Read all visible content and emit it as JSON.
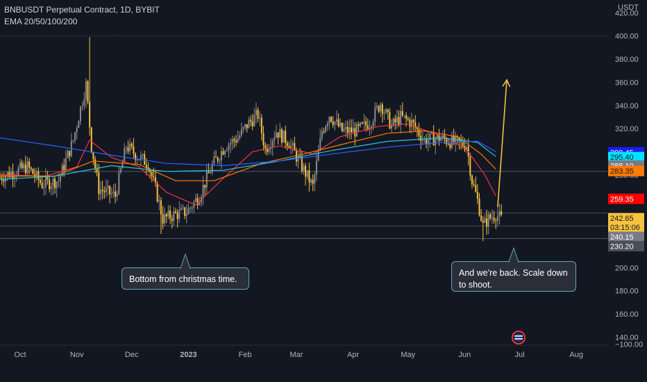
{
  "header": {
    "title": "BNBUSDT Perpetual Contract, 1D, BYBIT",
    "indicator": "EMA 20/50/100/200"
  },
  "axis": {
    "currency": "USDT"
  },
  "annotations": [
    {
      "text": "Bottom from christmas time."
    },
    {
      "text": "And we're back. Scale down to shoot."
    }
  ],
  "price_badges": [
    {
      "value": "299.45",
      "price": 299.45,
      "bg": "#1a1aff",
      "fg": "#ffffff"
    },
    {
      "value": "295.40",
      "price": 295.4,
      "bg": "#00e5ff",
      "fg": "#131722"
    },
    {
      "value": "288.10",
      "price": 288.1,
      "bg": "#787b86",
      "fg": "#ffffff"
    },
    {
      "value": "283.35",
      "price": 283.35,
      "bg": "#ff7a00",
      "fg": "#131722"
    },
    {
      "value": "259.35",
      "price": 259.35,
      "bg": "#ff0000",
      "fg": "#ffffff"
    },
    {
      "value": "242.65",
      "price": 242.65,
      "bg": "#f7c23e",
      "fg": "#131722"
    },
    {
      "value": "03:15:06",
      "price": 234.8,
      "bg": "#f7c23e",
      "fg": "#131722"
    },
    {
      "value": "240.15",
      "price": 226.5,
      "bg": "#787b86",
      "fg": "#ffffff"
    },
    {
      "value": "230.20",
      "price": 218.5,
      "bg": "#4a4e59",
      "fg": "#ffffff"
    }
  ],
  "colors": {
    "background": "#131722",
    "candle_up": "#8c8c8c",
    "candle_down": "#f7c23e",
    "ema20": "#f23645",
    "ema50": "#ff7a00",
    "ema100": "#26c6da",
    "ema200": "#2962ff",
    "arrow": "#f7c23e"
  },
  "chart_data": {
    "type": "candlestick",
    "title": "BNBUSDT Perpetual Contract, 1D, BYBIT",
    "indicator": "EMA 20/50/100/200",
    "y_unit": "USDT",
    "ylim": [
      133,
      431
    ],
    "y_ticks": [
      "420.00",
      "400.00",
      "380.00",
      "360.00",
      "340.00",
      "320.00",
      "300.00",
      "280.00",
      "260.00",
      "240.00",
      "220.00",
      "200.00",
      "180.00",
      "160.00",
      "140.00"
    ],
    "x_ticks": [
      {
        "label": "Oct",
        "date": "2022-10-01"
      },
      {
        "label": "Nov",
        "date": "2022-11-01"
      },
      {
        "label": "Dec",
        "date": "2022-12-01"
      },
      {
        "label": "2023",
        "date": "2023-01-01"
      },
      {
        "label": "Feb",
        "date": "2023-02-01"
      },
      {
        "label": "Mar",
        "date": "2023-03-01"
      },
      {
        "label": "Apr",
        "date": "2023-04-01"
      },
      {
        "label": "May",
        "date": "2023-05-01"
      },
      {
        "label": "Jun",
        "date": "2023-06-01"
      },
      {
        "label": "Jul",
        "date": "2023-07-01"
      },
      {
        "label": "Aug",
        "date": "2023-08-01"
      }
    ],
    "x_range": [
      "2022-09-20",
      "2023-08-18"
    ],
    "horizontal_levels": [
      400,
      283,
      247,
      236,
      225
    ],
    "price_path": [
      {
        "date": "2022-09-20",
        "price": 278
      },
      {
        "date": "2022-09-28",
        "price": 283
      },
      {
        "date": "2022-10-05",
        "price": 287
      },
      {
        "date": "2022-10-13",
        "price": 272
      },
      {
        "date": "2022-10-22",
        "price": 275
      },
      {
        "date": "2022-10-30",
        "price": 310
      },
      {
        "date": "2022-11-06",
        "price": 358
      },
      {
        "date": "2022-11-09",
        "price": 305
      },
      {
        "date": "2022-11-13",
        "price": 268
      },
      {
        "date": "2022-11-22",
        "price": 262
      },
      {
        "date": "2022-11-28",
        "price": 305
      },
      {
        "date": "2022-12-05",
        "price": 295
      },
      {
        "date": "2022-12-10",
        "price": 290
      },
      {
        "date": "2022-12-15",
        "price": 262
      },
      {
        "date": "2022-12-18",
        "price": 242
      },
      {
        "date": "2022-12-25",
        "price": 246
      },
      {
        "date": "2022-12-31",
        "price": 248
      },
      {
        "date": "2023-01-07",
        "price": 262
      },
      {
        "date": "2023-01-14",
        "price": 288
      },
      {
        "date": "2023-01-21",
        "price": 305
      },
      {
        "date": "2023-01-28",
        "price": 312
      },
      {
        "date": "2023-02-03",
        "price": 325
      },
      {
        "date": "2023-02-08",
        "price": 332
      },
      {
        "date": "2023-02-12",
        "price": 302
      },
      {
        "date": "2023-02-18",
        "price": 318
      },
      {
        "date": "2023-02-25",
        "price": 308
      },
      {
        "date": "2023-03-03",
        "price": 290
      },
      {
        "date": "2023-03-10",
        "price": 270
      },
      {
        "date": "2023-03-15",
        "price": 318
      },
      {
        "date": "2023-03-19",
        "price": 332
      },
      {
        "date": "2023-03-26",
        "price": 318
      },
      {
        "date": "2023-04-03",
        "price": 318
      },
      {
        "date": "2023-04-10",
        "price": 325
      },
      {
        "date": "2023-04-16",
        "price": 342
      },
      {
        "date": "2023-04-22",
        "price": 322
      },
      {
        "date": "2023-04-27",
        "price": 330
      },
      {
        "date": "2023-05-03",
        "price": 325
      },
      {
        "date": "2023-05-10",
        "price": 310
      },
      {
        "date": "2023-05-18",
        "price": 312
      },
      {
        "date": "2023-05-26",
        "price": 308
      },
      {
        "date": "2023-06-02",
        "price": 306
      },
      {
        "date": "2023-06-05",
        "price": 275
      },
      {
        "date": "2023-06-08",
        "price": 258
      },
      {
        "date": "2023-06-11",
        "price": 236
      },
      {
        "date": "2023-06-14",
        "price": 242
      },
      {
        "date": "2023-06-18",
        "price": 246
      },
      {
        "date": "2023-06-21",
        "price": 242
      }
    ],
    "series": [
      {
        "name": "EMA 20",
        "color": "#f23645",
        "points": [
          [
            "2022-09-20",
            280
          ],
          [
            "2022-10-15",
            279
          ],
          [
            "2022-11-01",
            287
          ],
          [
            "2022-11-08",
            310
          ],
          [
            "2022-11-20",
            295
          ],
          [
            "2022-12-05",
            287
          ],
          [
            "2022-12-20",
            265
          ],
          [
            "2023-01-05",
            254
          ],
          [
            "2023-01-20",
            277
          ],
          [
            "2023-02-05",
            300
          ],
          [
            "2023-02-20",
            305
          ],
          [
            "2023-03-10",
            298
          ],
          [
            "2023-03-25",
            313
          ],
          [
            "2023-04-15",
            322
          ],
          [
            "2023-05-01",
            324
          ],
          [
            "2023-05-20",
            313
          ],
          [
            "2023-06-02",
            302
          ],
          [
            "2023-06-12",
            280
          ],
          [
            "2023-06-18",
            262
          ]
        ]
      },
      {
        "name": "EMA 50",
        "color": "#ff7a00",
        "points": [
          [
            "2022-09-20",
            279
          ],
          [
            "2022-10-20",
            279
          ],
          [
            "2022-11-10",
            292
          ],
          [
            "2022-12-05",
            289
          ],
          [
            "2022-12-25",
            275
          ],
          [
            "2023-01-15",
            275
          ],
          [
            "2023-02-10",
            290
          ],
          [
            "2023-03-05",
            298
          ],
          [
            "2023-03-25",
            306
          ],
          [
            "2023-04-20",
            316
          ],
          [
            "2023-05-10",
            318
          ],
          [
            "2023-05-28",
            313
          ],
          [
            "2023-06-10",
            298
          ],
          [
            "2023-06-18",
            285
          ]
        ]
      },
      {
        "name": "EMA 100",
        "color": "#26c6da",
        "points": [
          [
            "2022-09-20",
            276
          ],
          [
            "2022-10-20",
            279
          ],
          [
            "2022-11-20",
            288
          ],
          [
            "2022-12-20",
            283
          ],
          [
            "2023-01-20",
            284
          ],
          [
            "2023-02-20",
            292
          ],
          [
            "2023-03-20",
            301
          ],
          [
            "2023-04-20",
            309
          ],
          [
            "2023-05-20",
            312
          ],
          [
            "2023-06-08",
            308
          ],
          [
            "2023-06-18",
            296
          ]
        ]
      },
      {
        "name": "EMA 200",
        "color": "#2962ff",
        "points": [
          [
            "2022-09-20",
            312
          ],
          [
            "2022-10-20",
            305
          ],
          [
            "2022-11-20",
            297
          ],
          [
            "2022-12-20",
            290
          ],
          [
            "2023-01-20",
            288
          ],
          [
            "2023-02-20",
            292
          ],
          [
            "2023-03-20",
            298
          ],
          [
            "2023-04-20",
            304
          ],
          [
            "2023-05-20",
            308
          ],
          [
            "2023-06-08",
            309
          ],
          [
            "2023-06-18",
            300
          ]
        ]
      }
    ],
    "arrow": {
      "from": [
        "2023-06-19",
        252
      ],
      "to": [
        "2023-06-24",
        362
      ]
    },
    "annotations": [
      {
        "text": "Bottom from christmas time.",
        "points_to": [
          "2022-12-24",
          225
        ]
      },
      {
        "text": "And we're back. Scale down to shoot.",
        "points_to": [
          "2023-06-15",
          225
        ]
      }
    ]
  }
}
